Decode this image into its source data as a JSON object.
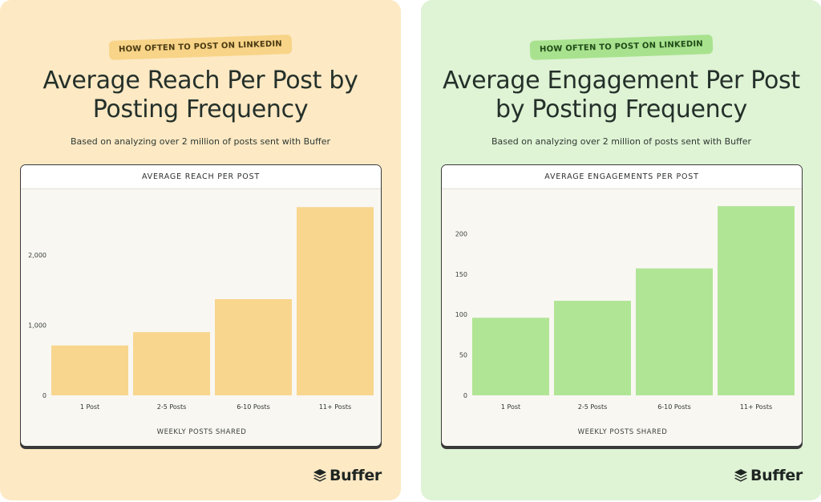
{
  "brand": "Buffer",
  "colors": {
    "left_bg": "#fde9c4",
    "left_pill": "#f8d488",
    "left_bar": "#f8d68e",
    "right_bg": "#dff3d5",
    "right_pill": "#a8e28e",
    "right_bar": "#b1e596"
  },
  "panels": [
    {
      "pill": "HOW OFTEN TO POST ON LINKEDIN",
      "title_line1": "Average Reach Per Post by",
      "title_line2": "Posting Frequency",
      "subtitle": "Based on analyzing over 2 million of posts sent with Buffer"
    },
    {
      "pill": "HOW OFTEN TO POST ON LINKEDIN",
      "title_line1": "Average Engagement Per Post",
      "title_line2": "by Posting Frequency",
      "subtitle": "Based on analyzing over 2 million of posts sent with Buffer"
    }
  ],
  "chart_data": [
    {
      "type": "bar",
      "title": "AVERAGE REACH PER POST",
      "xlabel": "WEEKLY POSTS SHARED",
      "ylabel": "",
      "categories": [
        "1 Post",
        "2-5 Posts",
        "6-10 Posts",
        "11+ Posts"
      ],
      "values": [
        710,
        900,
        1370,
        2680
      ],
      "ylim": [
        0,
        2820
      ],
      "yticks": [
        0,
        1000,
        2000
      ],
      "ytick_labels": [
        "0",
        "1,000",
        "2,000"
      ],
      "grid": false
    },
    {
      "type": "bar",
      "title": "AVERAGE ENGAGEMENTS PER POST",
      "xlabel": "WEEKLY POSTS SHARED",
      "ylabel": "",
      "categories": [
        "1 Post",
        "2-5 Posts",
        "6-10 Posts",
        "11+ Posts"
      ],
      "values": [
        96,
        117,
        157,
        234
      ],
      "ylim": [
        0,
        245
      ],
      "yticks": [
        0,
        50,
        100,
        150,
        200
      ],
      "ytick_labels": [
        "0",
        "50",
        "100",
        "150",
        "200"
      ],
      "grid": false
    }
  ]
}
